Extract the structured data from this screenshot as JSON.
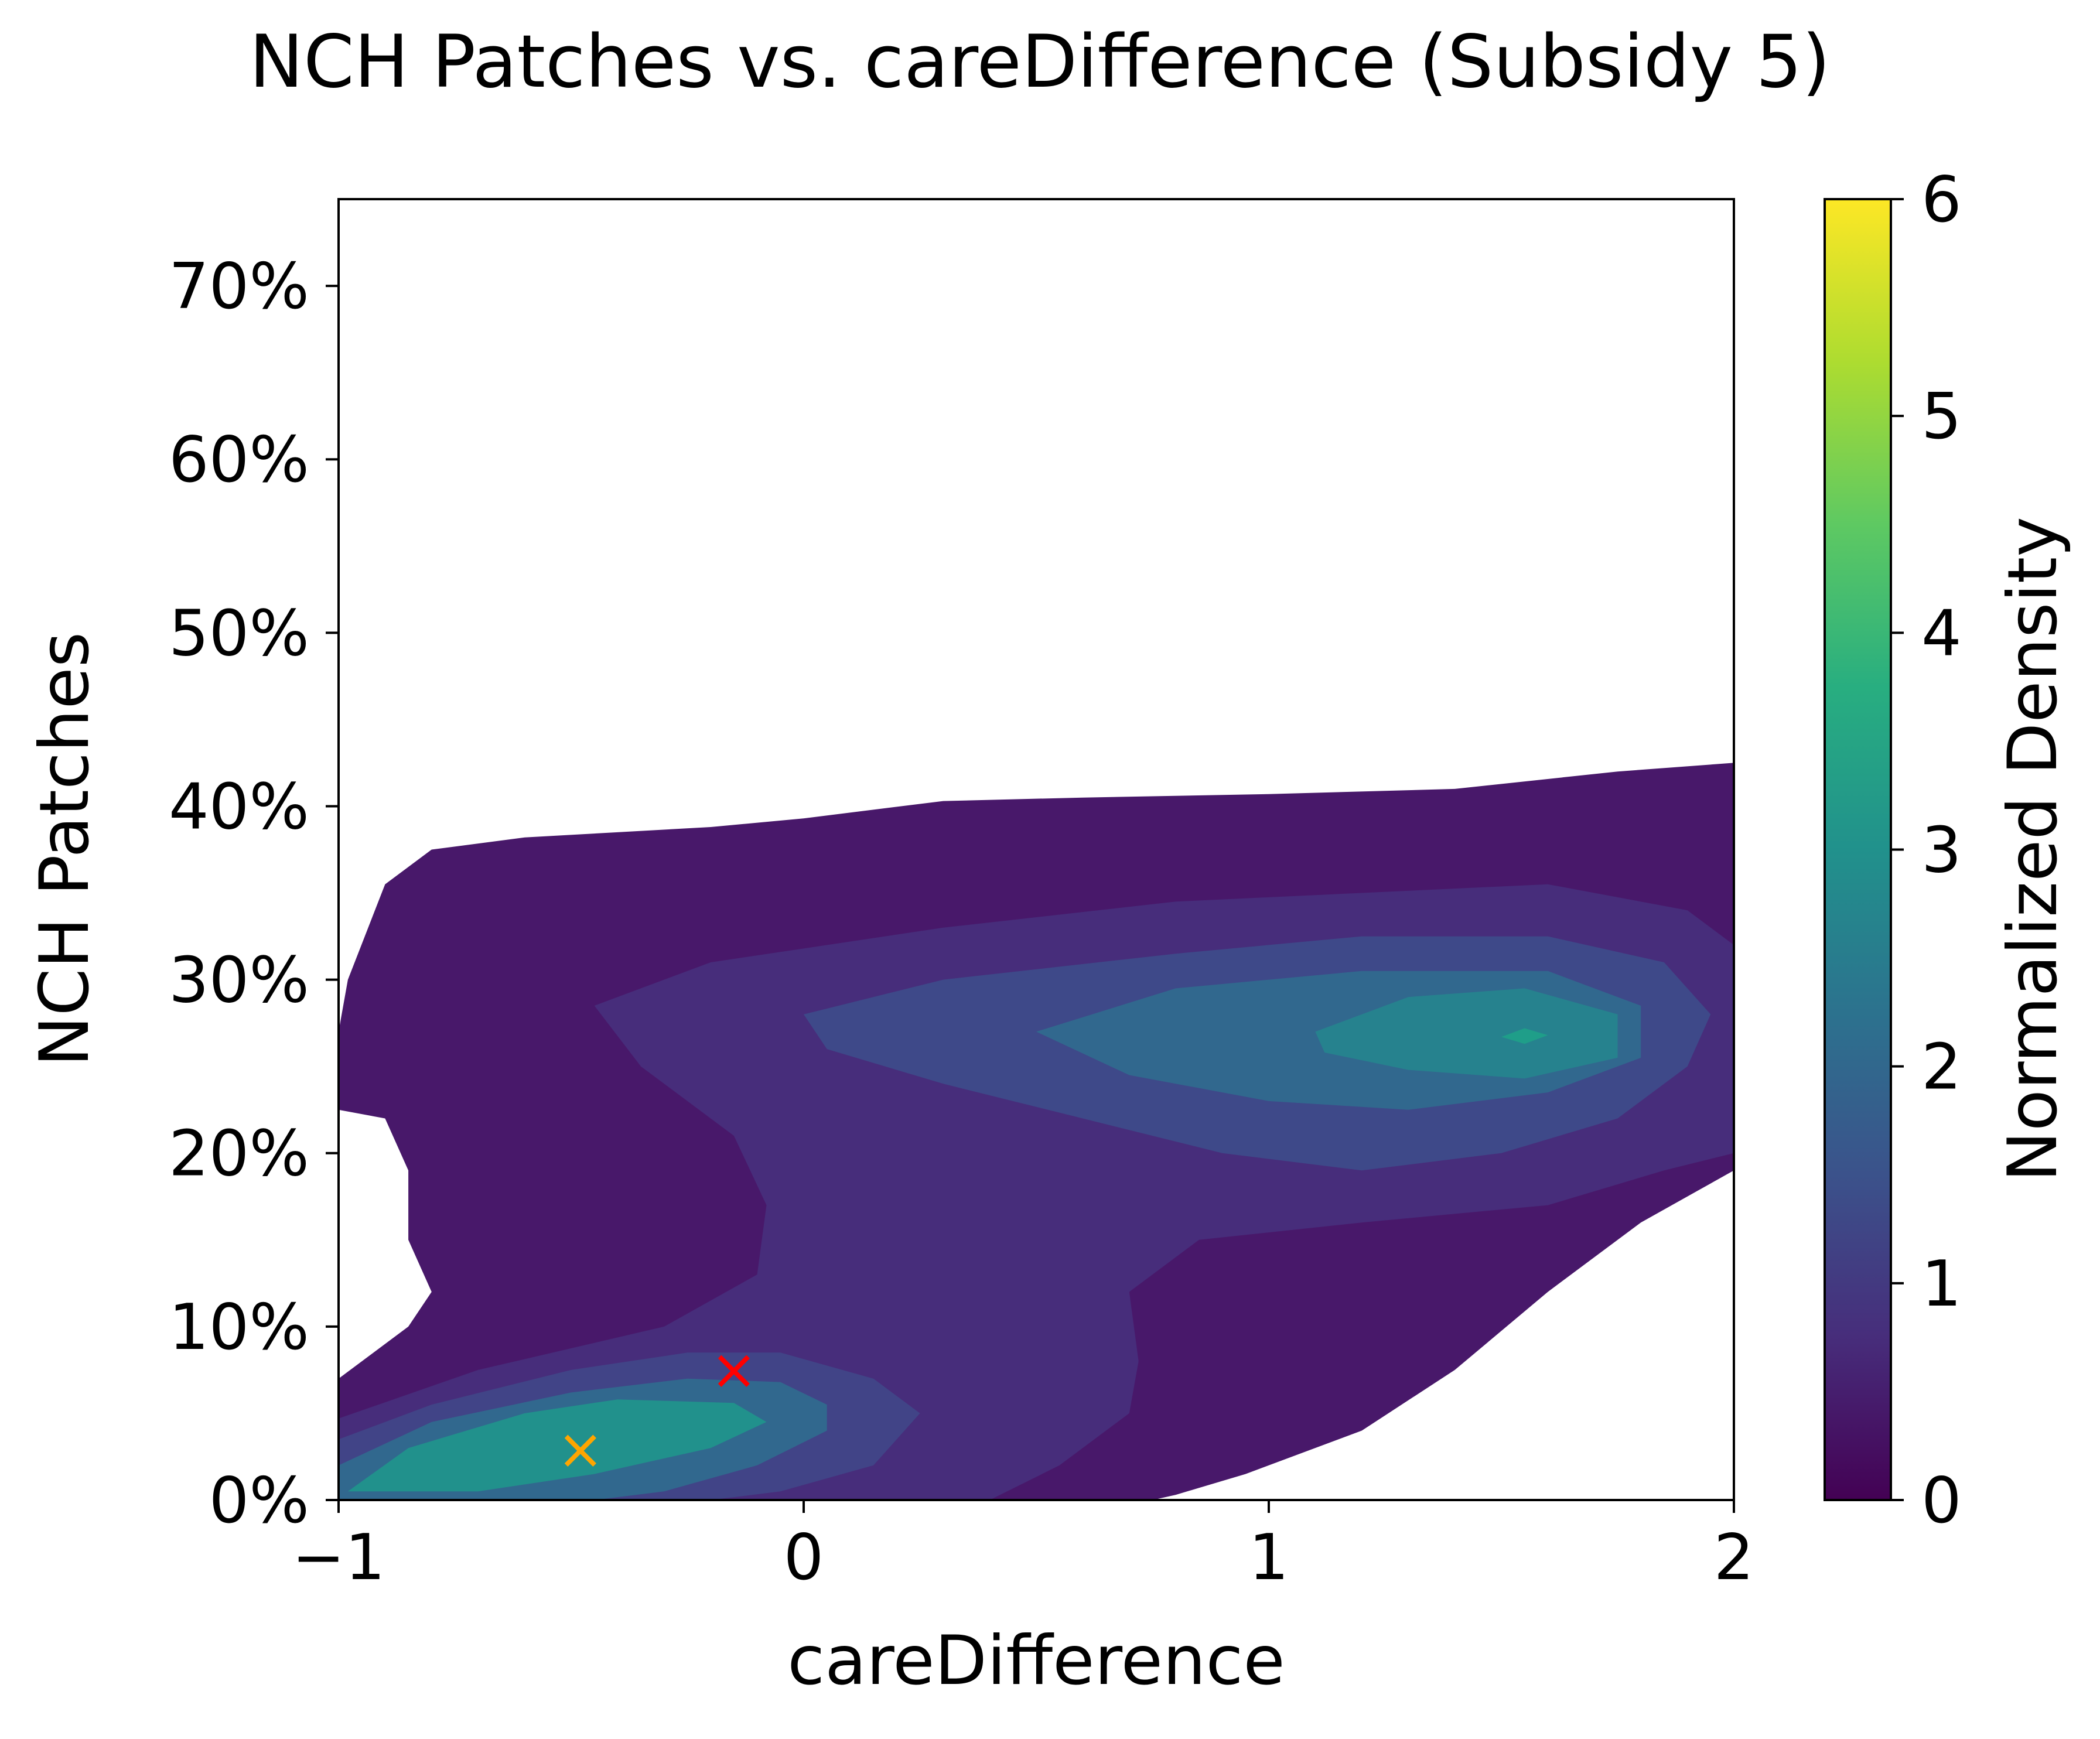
{
  "chart_data": {
    "type": "kde-contour",
    "title": "NCH Patches vs. careDifference (Subsidy 5)",
    "xlabel": "careDifference",
    "ylabel": "NCH Patches",
    "xlim": [
      -1,
      2
    ],
    "ylim": [
      0,
      0.75
    ],
    "xticks": [
      -1,
      0,
      1,
      2
    ],
    "xtick_labels": [
      "−1",
      "0",
      "1",
      "2"
    ],
    "yticks": [
      0,
      0.1,
      0.2,
      0.3,
      0.4,
      0.5,
      0.6,
      0.7
    ],
    "ytick_labels": [
      "0%",
      "10%",
      "20%",
      "30%",
      "40%",
      "50%",
      "60%",
      "70%"
    ],
    "colorbar": {
      "label": "Normalized Density",
      "range": [
        0,
        6
      ],
      "ticks": [
        0,
        1,
        2,
        3,
        4,
        5,
        6
      ],
      "tick_labels": [
        "0",
        "1",
        "2",
        "3",
        "4",
        "5",
        "6"
      ],
      "colormap": "viridis"
    },
    "levels": [
      {
        "level": 1,
        "color": "#48186a",
        "polygon": [
          [
            -1,
            0
          ],
          [
            -1,
            0.27
          ],
          [
            -0.98,
            0.3
          ],
          [
            -0.9,
            0.355
          ],
          [
            -0.8,
            0.375
          ],
          [
            -0.6,
            0.382
          ],
          [
            -0.4,
            0.385
          ],
          [
            -0.2,
            0.388
          ],
          [
            0,
            0.393
          ],
          [
            0.3,
            0.403
          ],
          [
            0.6,
            0.405
          ],
          [
            1.0,
            0.407
          ],
          [
            1.4,
            0.41
          ],
          [
            1.75,
            0.42
          ],
          [
            2.0,
            0.425
          ],
          [
            2.0,
            0.19
          ],
          [
            1.8,
            0.16
          ],
          [
            1.6,
            0.12
          ],
          [
            1.4,
            0.075
          ],
          [
            1.2,
            0.04
          ],
          [
            0.95,
            0.015
          ],
          [
            0.8,
            0.003
          ],
          [
            0.75,
            0
          ],
          [
            -1,
            0
          ],
          [
            -1,
            0.07
          ],
          [
            -0.85,
            0.1
          ],
          [
            -0.8,
            0.12
          ],
          [
            -0.85,
            0.15
          ],
          [
            -0.85,
            0.19
          ],
          [
            -0.9,
            0.22
          ],
          [
            -1,
            0.225
          ]
        ]
      },
      {
        "level": 2,
        "color": "#472d7b",
        "polygon": [
          [
            -1,
            0
          ],
          [
            -1,
            0.047
          ],
          [
            -0.7,
            0.075
          ],
          [
            -0.3,
            0.1
          ],
          [
            -0.1,
            0.13
          ],
          [
            -0.08,
            0.17
          ],
          [
            -0.15,
            0.21
          ],
          [
            -0.35,
            0.25
          ],
          [
            -0.45,
            0.285
          ],
          [
            -0.2,
            0.31
          ],
          [
            0.3,
            0.33
          ],
          [
            0.8,
            0.345
          ],
          [
            1.2,
            0.35
          ],
          [
            1.6,
            0.355
          ],
          [
            1.9,
            0.34
          ],
          [
            2.0,
            0.32
          ],
          [
            2.0,
            0.2
          ],
          [
            1.85,
            0.19
          ],
          [
            1.6,
            0.17
          ],
          [
            1.2,
            0.16
          ],
          [
            0.85,
            0.15
          ],
          [
            0.7,
            0.12
          ],
          [
            0.72,
            0.08
          ],
          [
            0.7,
            0.05
          ],
          [
            0.55,
            0.02
          ],
          [
            0.4,
            0
          ],
          [
            -1,
            0
          ]
        ]
      },
      {
        "level": 3,
        "color": "#3e4989",
        "polygon": [
          [
            0.0,
            0.28
          ],
          [
            0.3,
            0.3
          ],
          [
            0.8,
            0.315
          ],
          [
            1.2,
            0.325
          ],
          [
            1.6,
            0.325
          ],
          [
            1.85,
            0.31
          ],
          [
            1.95,
            0.28
          ],
          [
            1.9,
            0.25
          ],
          [
            1.75,
            0.22
          ],
          [
            1.5,
            0.2
          ],
          [
            1.2,
            0.19
          ],
          [
            0.9,
            0.2
          ],
          [
            0.6,
            0.22
          ],
          [
            0.3,
            0.24
          ],
          [
            0.05,
            0.26
          ]
        ]
      },
      {
        "level": 4,
        "color": "#31688e",
        "polygon": [
          [
            0.5,
            0.27
          ],
          [
            0.8,
            0.295
          ],
          [
            1.2,
            0.305
          ],
          [
            1.6,
            0.305
          ],
          [
            1.8,
            0.285
          ],
          [
            1.8,
            0.255
          ],
          [
            1.6,
            0.235
          ],
          [
            1.3,
            0.225
          ],
          [
            1.0,
            0.23
          ],
          [
            0.7,
            0.245
          ]
        ]
      },
      {
        "level": 5,
        "color": "#26828e",
        "polygon": [
          [
            1.1,
            0.27
          ],
          [
            1.3,
            0.29
          ],
          [
            1.55,
            0.295
          ],
          [
            1.75,
            0.28
          ],
          [
            1.75,
            0.255
          ],
          [
            1.55,
            0.243
          ],
          [
            1.3,
            0.248
          ],
          [
            1.12,
            0.258
          ]
        ]
      },
      {
        "level": 6,
        "color": "#1f9e89",
        "polygon": [
          [
            1.5,
            0.267
          ],
          [
            1.55,
            0.272
          ],
          [
            1.6,
            0.268
          ],
          [
            1.55,
            0.263
          ]
        ]
      },
      {
        "level": 7,
        "color": "#414487",
        "polygon": [
          [
            -1,
            0
          ],
          [
            -1,
            0.035
          ],
          [
            -0.8,
            0.055
          ],
          [
            -0.5,
            0.075
          ],
          [
            -0.25,
            0.085
          ],
          [
            -0.05,
            0.085
          ],
          [
            0.15,
            0.07
          ],
          [
            0.25,
            0.05
          ],
          [
            0.15,
            0.02
          ],
          [
            -0.05,
            0.005
          ],
          [
            -0.2,
            0
          ]
        ]
      },
      {
        "level": 8,
        "color": "#31688e",
        "polygon": [
          [
            -1,
            0
          ],
          [
            -1,
            0.02
          ],
          [
            -0.8,
            0.045
          ],
          [
            -0.5,
            0.062
          ],
          [
            -0.25,
            0.07
          ],
          [
            -0.05,
            0.068
          ],
          [
            0.05,
            0.055
          ],
          [
            0.05,
            0.04
          ],
          [
            -0.1,
            0.02
          ],
          [
            -0.3,
            0.005
          ],
          [
            -0.45,
            0
          ]
        ]
      },
      {
        "level": 9,
        "color": "#21918c",
        "polygon": [
          [
            -0.98,
            0.005
          ],
          [
            -0.85,
            0.03
          ],
          [
            -0.6,
            0.05
          ],
          [
            -0.4,
            0.058
          ],
          [
            -0.15,
            0.056
          ],
          [
            -0.08,
            0.045
          ],
          [
            -0.2,
            0.03
          ],
          [
            -0.45,
            0.015
          ],
          [
            -0.7,
            0.005
          ]
        ]
      }
    ],
    "markers": [
      {
        "x": -0.48,
        "y": 0.027,
        "color": "#ffa500",
        "symbol": "×"
      },
      {
        "x": -0.15,
        "y": 0.073,
        "color": "#ff0000",
        "symbol": "×"
      }
    ]
  }
}
